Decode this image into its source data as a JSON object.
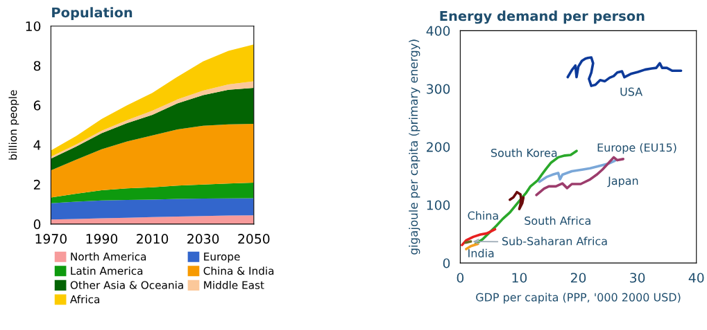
{
  "chart_data": [
    {
      "type": "area",
      "stacked": true,
      "title": "Population",
      "ylabel": "billion people",
      "x": [
        1970,
        1980,
        1990,
        2000,
        2010,
        2020,
        2030,
        2040,
        2050
      ],
      "xlim": [
        1970,
        2050
      ],
      "xticks": [
        1970,
        1990,
        2010,
        2030,
        2050
      ],
      "ylim": [
        0,
        10
      ],
      "yticks": [
        0,
        2,
        4,
        6,
        8,
        10
      ],
      "grid": false,
      "legend": "bottom",
      "series": [
        {
          "name": "North America",
          "color": "#f79b9b",
          "values": [
            0.23,
            0.26,
            0.29,
            0.32,
            0.35,
            0.38,
            0.41,
            0.43,
            0.44
          ]
        },
        {
          "name": "Europe",
          "color": "#3366cc",
          "values": [
            0.82,
            0.87,
            0.9,
            0.9,
            0.89,
            0.89,
            0.88,
            0.87,
            0.87
          ]
        },
        {
          "name": "Latin America",
          "color": "#0e9a0e",
          "values": [
            0.29,
            0.4,
            0.52,
            0.58,
            0.62,
            0.67,
            0.71,
            0.75,
            0.78
          ]
        },
        {
          "name": "China & India",
          "color": "#f79a00",
          "values": [
            1.37,
            1.72,
            2.07,
            2.37,
            2.62,
            2.84,
            2.97,
            2.99,
            2.97
          ]
        },
        {
          "name": "Other Asia & Oceania",
          "color": "#036403",
          "values": [
            0.6,
            0.67,
            0.81,
            0.93,
            1.04,
            1.32,
            1.54,
            1.74,
            1.82
          ]
        },
        {
          "name": "Middle East",
          "color": "#fbc89a",
          "values": [
            0.09,
            0.1,
            0.12,
            0.15,
            0.21,
            0.2,
            0.23,
            0.27,
            0.33
          ]
        },
        {
          "name": "Africa",
          "color": "#fccb00",
          "values": [
            0.32,
            0.43,
            0.6,
            0.75,
            0.9,
            1.15,
            1.48,
            1.7,
            1.86
          ]
        }
      ]
    },
    {
      "type": "line",
      "title": "Energy demand per person",
      "xlabel": "GDP per capita (PPP, '000 2000 USD)",
      "ylabel": "gigajoule per capita (primary energy)",
      "xlim": [
        0,
        40
      ],
      "xticks": [
        0,
        10,
        20,
        30,
        40
      ],
      "ylim": [
        0,
        400
      ],
      "yticks": [
        0,
        100,
        200,
        300,
        400
      ],
      "grid": false,
      "series": [
        {
          "name": "USA",
          "color": "#0d3a9a",
          "x": [
            18.2,
            18.9,
            19.5,
            19.7,
            20.0,
            20.6,
            21.2,
            21.6,
            22.2,
            22.5,
            22.2,
            21.8,
            22.2,
            22.9,
            23.7,
            24.5,
            25.3,
            26.0,
            26.6,
            27.4,
            27.8,
            29.0,
            30.1,
            31.3,
            32.4,
            33.2,
            33.8,
            34.2,
            35.0,
            35.9,
            37.4
          ],
          "values": [
            320,
            332,
            340,
            320,
            338,
            348,
            352,
            353,
            354,
            344,
            328,
            317,
            305,
            307,
            315,
            313,
            319,
            322,
            328,
            330,
            320,
            326,
            329,
            333,
            335,
            336,
            344,
            336,
            336,
            331,
            331
          ]
        },
        {
          "name": "South Korea",
          "color": "#2aa82a",
          "x": [
            2.6,
            3.8,
            4.9,
            6.1,
            7.2,
            8.4,
            9.6,
            10.5,
            11.1,
            11.9,
            13.1,
            13.8,
            14.6,
            15.4,
            16.6,
            17.7,
            18.7,
            19.7
          ],
          "values": [
            33,
            41,
            52,
            64,
            76,
            87,
            102,
            113,
            120,
            132,
            142,
            152,
            163,
            173,
            182,
            185,
            186,
            193
          ]
        },
        {
          "name": "Europe (EU15)",
          "color": "#7aa7d8",
          "x": [
            13.4,
            14.6,
            15.6,
            16.6,
            16.9,
            17.3,
            18.9,
            20.8,
            22.0,
            23.5,
            25.1,
            26.2
          ],
          "values": [
            140,
            148,
            152,
            155,
            144,
            152,
            158,
            161,
            163,
            167,
            171,
            176
          ]
        },
        {
          "name": "Japan",
          "color": "#9c3c6c",
          "x": [
            12.9,
            14.2,
            15.0,
            16.2,
            17.3,
            18.1,
            18.9,
            20.4,
            22.0,
            23.1,
            24.1,
            25.1,
            26.0,
            26.6,
            27.6
          ],
          "values": [
            117,
            128,
            132,
            132,
            137,
            129,
            136,
            136,
            144,
            152,
            161,
            172,
            182,
            177,
            179
          ]
        },
        {
          "name": "South Africa",
          "color": "#6b0c0c",
          "x": [
            8.4,
            9.0,
            9.6,
            10.2,
            10.3,
            10.2,
            10.0,
            10.5,
            10.7
          ],
          "values": [
            109,
            113,
            122,
            118,
            111,
            101,
            93,
            103,
            113
          ]
        },
        {
          "name": "China",
          "color": "#e82020",
          "x": [
            0.3,
            1.0,
            2.2,
            3.4,
            4.5,
            5.1,
            5.9
          ],
          "values": [
            31,
            39,
            45,
            49,
            51,
            54,
            58
          ]
        },
        {
          "name": "India",
          "color": "#f5a020",
          "x": [
            1.0,
            1.8,
            3.0
          ],
          "values": [
            24,
            29,
            33
          ]
        },
        {
          "name": "Sub-Saharan Africa",
          "color": "#6b6b20",
          "x": [
            0.9,
            1.8
          ],
          "values": [
            35,
            37
          ]
        }
      ]
    }
  ]
}
